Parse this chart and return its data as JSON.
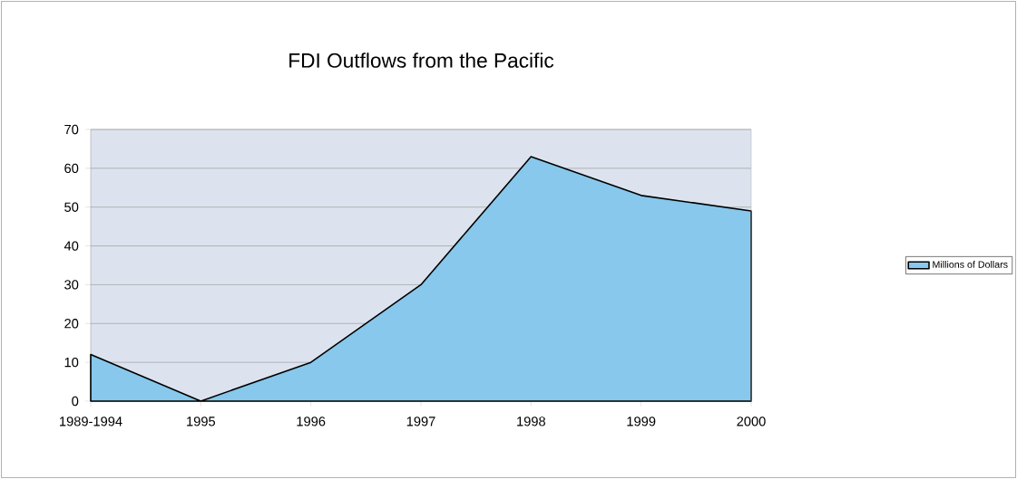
{
  "chart_data": {
    "type": "area",
    "title": "FDI Outflows from the Pacific",
    "categories": [
      "1989-1994",
      "1995",
      "1996",
      "1997",
      "1998",
      "1999",
      "2000"
    ],
    "series": [
      {
        "name": "Millions of Dollars",
        "color": "#87c8ec",
        "values": [
          12,
          0,
          10,
          30,
          63,
          53,
          49
        ]
      }
    ],
    "ylim": [
      0,
      70
    ],
    "yticks": [
      0,
      10,
      20,
      30,
      40,
      50,
      60,
      70
    ],
    "grid": "y",
    "legend": "right"
  }
}
